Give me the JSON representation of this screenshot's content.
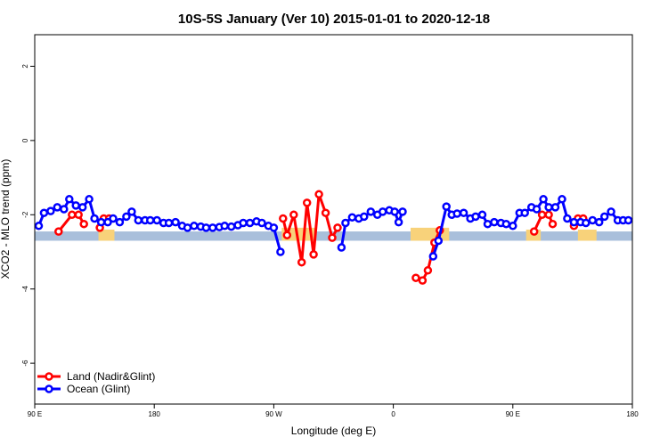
{
  "chart_data": {
    "type": "line",
    "title": "10S-5S January (Ver 10)   2015-01-01 to 2020-12-18",
    "xlabel": "Longitude (deg E)",
    "ylabel": "XCO2 - MLO trend (ppm)",
    "xlim": [
      90,
      540
    ],
    "ylim": [
      -7.1,
      2.85
    ],
    "x_ticks": [
      {
        "value": 90,
        "label": "90 E"
      },
      {
        "value": 180,
        "label": "180"
      },
      {
        "value": 270,
        "label": "90 W"
      },
      {
        "value": 360,
        "label": "0"
      },
      {
        "value": 450,
        "label": "90 E"
      },
      {
        "value": 540,
        "label": "180"
      }
    ],
    "y_ticks": [
      {
        "value": 2,
        "label": "2"
      },
      {
        "value": 0,
        "label": "0"
      },
      {
        "value": -2,
        "label": "-2"
      },
      {
        "value": -4,
        "label": "-4"
      },
      {
        "value": -6,
        "label": "-6"
      }
    ],
    "grid": false,
    "legend_position": "bottom-left",
    "band": {
      "y_low": -2.7,
      "y_high": -2.45,
      "color": "#a9bfdb"
    },
    "yellow_regions": [
      {
        "x_start": 138,
        "x_end": 150,
        "y_low": -2.7,
        "y_high": -2.4
      },
      {
        "x_start": 276,
        "x_end": 302,
        "y_low": -2.7,
        "y_high": -2.35
      },
      {
        "x_start": 373,
        "x_end": 402,
        "y_low": -2.7,
        "y_high": -2.35
      },
      {
        "x_start": 460,
        "x_end": 471,
        "y_low": -2.7,
        "y_high": -2.4
      },
      {
        "x_start": 499,
        "x_end": 513,
        "y_low": -2.7,
        "y_high": -2.4
      }
    ],
    "yellow_color": "#f8d27a",
    "series": [
      {
        "name": "Land (Nadir&Glint)",
        "color": "#ff0000",
        "segments": [
          [
            [
              108,
              -2.45
            ],
            [
              118,
              -2.0
            ],
            [
              123,
              -2.0
            ],
            [
              127,
              -2.25
            ]
          ],
          [
            [
              139,
              -2.35
            ],
            [
              142,
              -2.1
            ],
            [
              146,
              -2.1
            ]
          ],
          [
            [
              277,
              -2.1
            ],
            [
              280,
              -2.55
            ],
            [
              285,
              -2.0
            ],
            [
              291,
              -3.28
            ],
            [
              295,
              -1.68
            ],
            [
              300,
              -3.07
            ],
            [
              304,
              -1.45
            ],
            [
              309,
              -1.95
            ],
            [
              314,
              -2.62
            ],
            [
              318,
              -2.35
            ]
          ],
          [
            [
              377,
              -3.7
            ],
            [
              382,
              -3.77
            ],
            [
              386,
              -3.5
            ],
            [
              391,
              -2.75
            ],
            [
              395,
              -2.42
            ]
          ],
          [
            [
              466,
              -2.45
            ],
            [
              472,
              -2.0
            ],
            [
              477,
              -2.0
            ],
            [
              480,
              -2.25
            ]
          ],
          [
            [
              496,
              -2.3
            ],
            [
              499,
              -2.1
            ],
            [
              503,
              -2.1
            ]
          ]
        ]
      },
      {
        "name": "Ocean (Glint)",
        "color": "#0000ff",
        "segments": [
          [
            [
              93,
              -2.3
            ],
            [
              97,
              -1.95
            ],
            [
              102,
              -1.9
            ],
            [
              107,
              -1.8
            ],
            [
              112,
              -1.85
            ],
            [
              116,
              -1.58
            ],
            [
              121,
              -1.75
            ],
            [
              126,
              -1.8
            ],
            [
              131,
              -1.58
            ],
            [
              135,
              -2.1
            ],
            [
              140,
              -2.2
            ],
            [
              145,
              -2.2
            ],
            [
              149,
              -2.1
            ],
            [
              154,
              -2.2
            ],
            [
              159,
              -2.05
            ],
            [
              163,
              -1.92
            ],
            [
              168,
              -2.15
            ],
            [
              173,
              -2.15
            ],
            [
              177,
              -2.15
            ],
            [
              182,
              -2.15
            ],
            [
              187,
              -2.22
            ],
            [
              191,
              -2.22
            ],
            [
              196,
              -2.2
            ],
            [
              201,
              -2.3
            ],
            [
              205,
              -2.35
            ],
            [
              210,
              -2.3
            ],
            [
              215,
              -2.32
            ],
            [
              219,
              -2.35
            ],
            [
              224,
              -2.35
            ],
            [
              229,
              -2.33
            ],
            [
              233,
              -2.3
            ],
            [
              238,
              -2.32
            ],
            [
              243,
              -2.28
            ],
            [
              247,
              -2.22
            ],
            [
              252,
              -2.22
            ],
            [
              257,
              -2.18
            ],
            [
              261,
              -2.22
            ],
            [
              266,
              -2.3
            ],
            [
              270,
              -2.35
            ],
            [
              275,
              -3.0
            ]
          ],
          [
            [
              321,
              -2.88
            ],
            [
              324,
              -2.22
            ],
            [
              329,
              -2.07
            ],
            [
              334,
              -2.1
            ],
            [
              338,
              -2.05
            ],
            [
              343,
              -1.92
            ],
            [
              348,
              -2.0
            ],
            [
              352,
              -1.92
            ],
            [
              357,
              -1.88
            ],
            [
              361,
              -1.92
            ],
            [
              364,
              -2.2
            ],
            [
              367,
              -1.92
            ]
          ],
          [
            [
              390,
              -3.12
            ],
            [
              394,
              -2.7
            ],
            [
              400,
              -1.78
            ],
            [
              404,
              -2.0
            ],
            [
              408,
              -1.97
            ],
            [
              413,
              -1.95
            ],
            [
              418,
              -2.1
            ],
            [
              422,
              -2.05
            ],
            [
              427,
              -2.0
            ],
            [
              431,
              -2.25
            ],
            [
              436,
              -2.2
            ],
            [
              441,
              -2.22
            ],
            [
              445,
              -2.25
            ],
            [
              450,
              -2.3
            ],
            [
              455,
              -1.95
            ],
            [
              459,
              -1.95
            ],
            [
              464,
              -1.8
            ],
            [
              468,
              -1.85
            ],
            [
              473,
              -1.58
            ],
            [
              477,
              -1.8
            ],
            [
              482,
              -1.8
            ],
            [
              487,
              -1.58
            ],
            [
              491,
              -2.1
            ],
            [
              496,
              -2.2
            ],
            [
              501,
              -2.2
            ],
            [
              505,
              -2.22
            ],
            [
              510,
              -2.15
            ],
            [
              515,
              -2.2
            ],
            [
              519,
              -2.05
            ],
            [
              524,
              -1.92
            ],
            [
              529,
              -2.15
            ],
            [
              533,
              -2.15
            ],
            [
              537,
              -2.15
            ]
          ]
        ]
      }
    ]
  }
}
